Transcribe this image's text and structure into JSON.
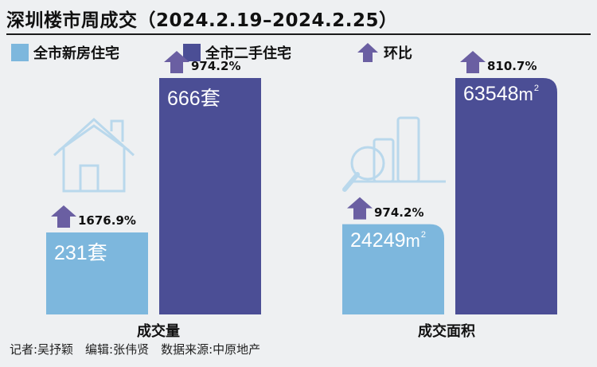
{
  "title": "深圳楼市周成交（2024.2.19–2024.2.25）",
  "legend": {
    "new_home": "全市新房住宅",
    "second_hand": "全市二手住宅",
    "ratio": "环比"
  },
  "colors": {
    "new_home": "#7db7dd",
    "second_hand": "#4b4e95",
    "arrow": "#6a5fa2",
    "icon_line": "#b9d8ec"
  },
  "chart_data": {
    "type": "bar",
    "title": "深圳楼市周成交（2024.2.19–2024.2.25）",
    "categories": [
      "成交量",
      "成交面积"
    ],
    "series": [
      {
        "name": "全市新房住宅",
        "values": [
          231,
          24249
        ],
        "labels": [
          "231套",
          "24249"
        ],
        "wow_change": [
          "1676.9%",
          "974.2%"
        ]
      },
      {
        "name": "全市二手住宅",
        "values": [
          666,
          63548
        ],
        "labels": [
          "666套",
          "63548"
        ],
        "wow_change": [
          "974.2%",
          "810.7%"
        ]
      }
    ],
    "area_unit_sup": "2",
    "area_unit_base": "m"
  },
  "credits": "记者:吴抒颖　编辑:张伟贤　数据来源:中原地产"
}
